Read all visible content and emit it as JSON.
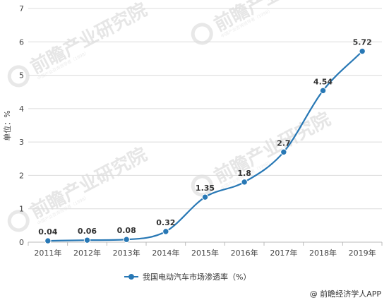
{
  "chart_data": {
    "type": "line",
    "categories": [
      "2011年",
      "2012年",
      "2013年",
      "2014年",
      "2015年",
      "2016年",
      "2017年",
      "2018年",
      "2019年"
    ],
    "series": [
      {
        "name": "我国电动汽车市场渗透率（%）",
        "values": [
          0.04,
          0.06,
          0.08,
          0.32,
          1.35,
          1.8,
          2.7,
          4.54,
          5.72
        ],
        "labels": [
          "0.04",
          "0.06",
          "0.08",
          "0.32",
          "1.35",
          "1.8",
          "2.7",
          "4.54",
          "5.72"
        ],
        "color": "#2878b5"
      }
    ],
    "ylabel": "单位：%",
    "ylim": [
      0,
      7
    ],
    "yticks": [
      0,
      1,
      2,
      3,
      4,
      5,
      6,
      7
    ],
    "grid": true,
    "legend_position": "bottom-center",
    "smooth": true
  },
  "watermark": {
    "text": "前瞻产业研究院",
    "sub": "中国产业咨询领导者（1998）"
  },
  "source": "@ 前瞻经济学人APP",
  "colors": {
    "line": "#2878b5",
    "grid": "#dcdcdc",
    "axis": "#bbbbbb"
  }
}
